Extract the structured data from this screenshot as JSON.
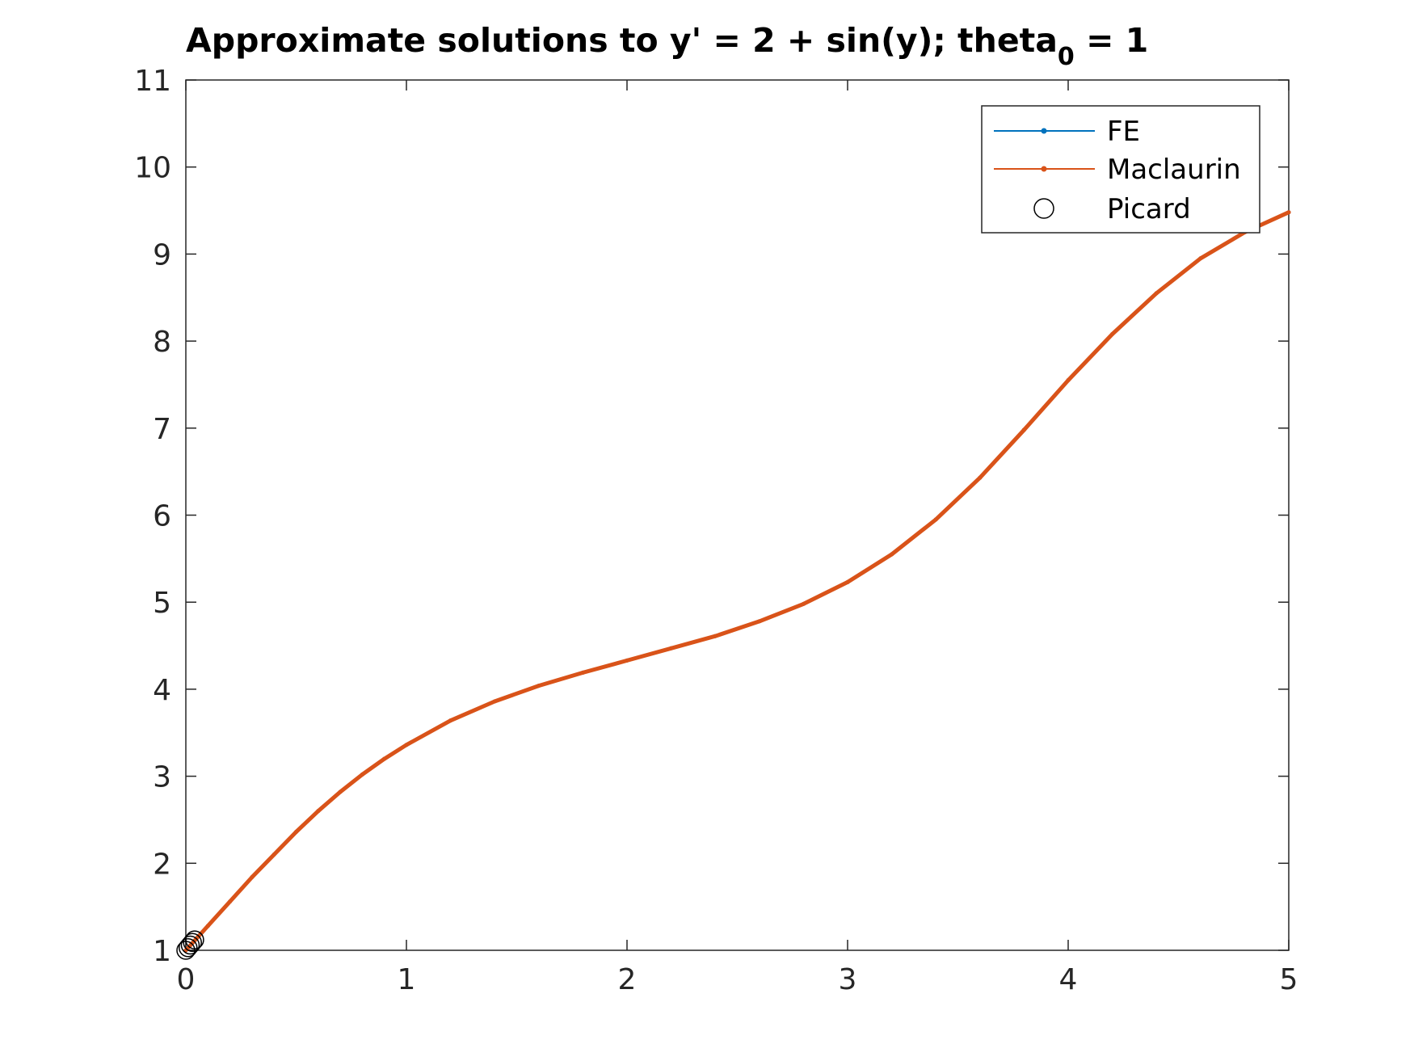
{
  "chart_data": {
    "type": "line",
    "title": "Approximate solutions to y' = 2 + sin(y);  theta",
    "title_subscript": "0",
    "title_suffix": " = 1",
    "xlabel": "",
    "ylabel": "",
    "xlim": [
      0,
      5
    ],
    "ylim": [
      1,
      11
    ],
    "x_ticks": [
      0,
      1,
      2,
      3,
      4,
      5
    ],
    "y_ticks": [
      1,
      2,
      3,
      4,
      5,
      6,
      7,
      8,
      9,
      10,
      11
    ],
    "grid": false,
    "legend_position": "top-right",
    "series": [
      {
        "name": "FE",
        "color": "#0072BD",
        "marker": "dot",
        "x": [
          0,
          0.1,
          0.2,
          0.3,
          0.4,
          0.5,
          0.6,
          0.7,
          0.8,
          0.9,
          1.0,
          1.2,
          1.4,
          1.6,
          1.8,
          2.0,
          2.2,
          2.4,
          2.6,
          2.8,
          3.0,
          3.2,
          3.4,
          3.6,
          3.8,
          4.0,
          4.2,
          4.4,
          4.6,
          4.8,
          5.0
        ],
        "y": [
          1.0,
          1.28,
          1.56,
          1.84,
          2.1,
          2.36,
          2.6,
          2.82,
          3.02,
          3.2,
          3.36,
          3.64,
          3.86,
          4.04,
          4.19,
          4.33,
          4.47,
          4.61,
          4.78,
          4.98,
          5.23,
          5.55,
          5.95,
          6.43,
          6.98,
          7.55,
          8.08,
          8.55,
          8.95,
          9.25,
          9.48
        ]
      },
      {
        "name": "Maclaurin",
        "color": "#D95319",
        "marker": "dot",
        "x": [
          0,
          0.1,
          0.2,
          0.3,
          0.4,
          0.5,
          0.6,
          0.7,
          0.8,
          0.9,
          1.0,
          1.2,
          1.4,
          1.6,
          1.8,
          2.0,
          2.2,
          2.4,
          2.6,
          2.8,
          3.0,
          3.2,
          3.4,
          3.6,
          3.8,
          4.0,
          4.2,
          4.4,
          4.6,
          4.8,
          5.0
        ],
        "y": [
          1.0,
          1.28,
          1.56,
          1.84,
          2.1,
          2.36,
          2.6,
          2.82,
          3.02,
          3.2,
          3.36,
          3.64,
          3.86,
          4.04,
          4.19,
          4.33,
          4.47,
          4.61,
          4.78,
          4.98,
          5.23,
          5.55,
          5.95,
          6.43,
          6.98,
          7.55,
          8.08,
          8.55,
          8.95,
          9.25,
          9.48
        ]
      },
      {
        "name": "Picard",
        "color": "#000000",
        "marker": "circle",
        "x": [
          0,
          0.01,
          0.02,
          0.03,
          0.04
        ],
        "y": [
          1.0,
          1.03,
          1.06,
          1.09,
          1.12
        ]
      }
    ]
  }
}
